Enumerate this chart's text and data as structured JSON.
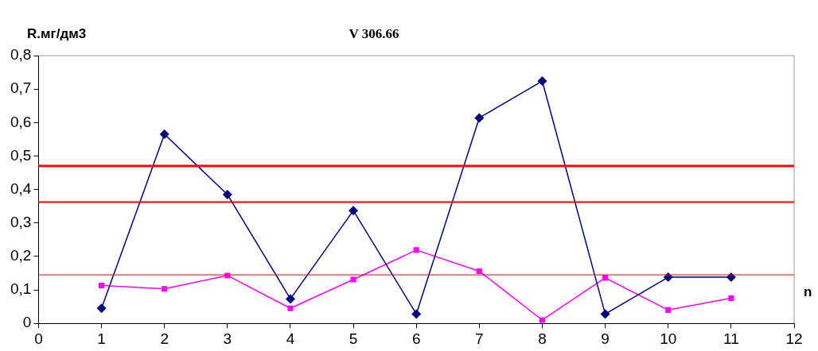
{
  "chart_data": {
    "type": "line",
    "title": "V 306.66",
    "ylabel": "R.мг/дм3",
    "xlabel": "n",
    "x": [
      1,
      2,
      3,
      4,
      5,
      6,
      7,
      8,
      9,
      10,
      11
    ],
    "series": [
      {
        "color": "#000080",
        "marker": "diamond",
        "values": [
          0.045,
          0.565,
          0.385,
          0.073,
          0.337,
          0.028,
          0.614,
          0.724,
          0.028,
          0.138,
          0.138
        ]
      },
      {
        "color": "#ff00ff",
        "marker": "square",
        "values": [
          0.113,
          0.103,
          0.143,
          0.045,
          0.131,
          0.219,
          0.156,
          0.01,
          0.136,
          0.04,
          0.075
        ]
      }
    ],
    "ref_lines": [
      {
        "axis": "y",
        "value": 0.47,
        "color": "#ff0000"
      },
      {
        "axis": "y",
        "value": 0.362,
        "color": "#ff0000"
      },
      {
        "axis": "y",
        "value": 0.145,
        "color": "#ff0000"
      }
    ],
    "xlim": [
      0,
      12
    ],
    "xticks": [
      0,
      1,
      2,
      3,
      4,
      5,
      6,
      7,
      8,
      9,
      10,
      11,
      12
    ],
    "ylim": [
      0,
      0.8
    ],
    "yticks": [
      0,
      {
        "value": 0.1,
        "label": "0,1"
      },
      {
        "value": 0.2,
        "label": "0,2"
      },
      {
        "value": 0.3,
        "label": "0,3"
      },
      {
        "value": 0.4,
        "label": "0,4"
      },
      {
        "value": 0.5,
        "label": "0,5"
      },
      {
        "value": 0.6,
        "label": "0,6"
      },
      {
        "value": 0.7,
        "label": "0,7"
      },
      {
        "value": 0.8,
        "label": "0,8"
      }
    ],
    "grid": false,
    "legend": false,
    "line_style": "solid"
  }
}
